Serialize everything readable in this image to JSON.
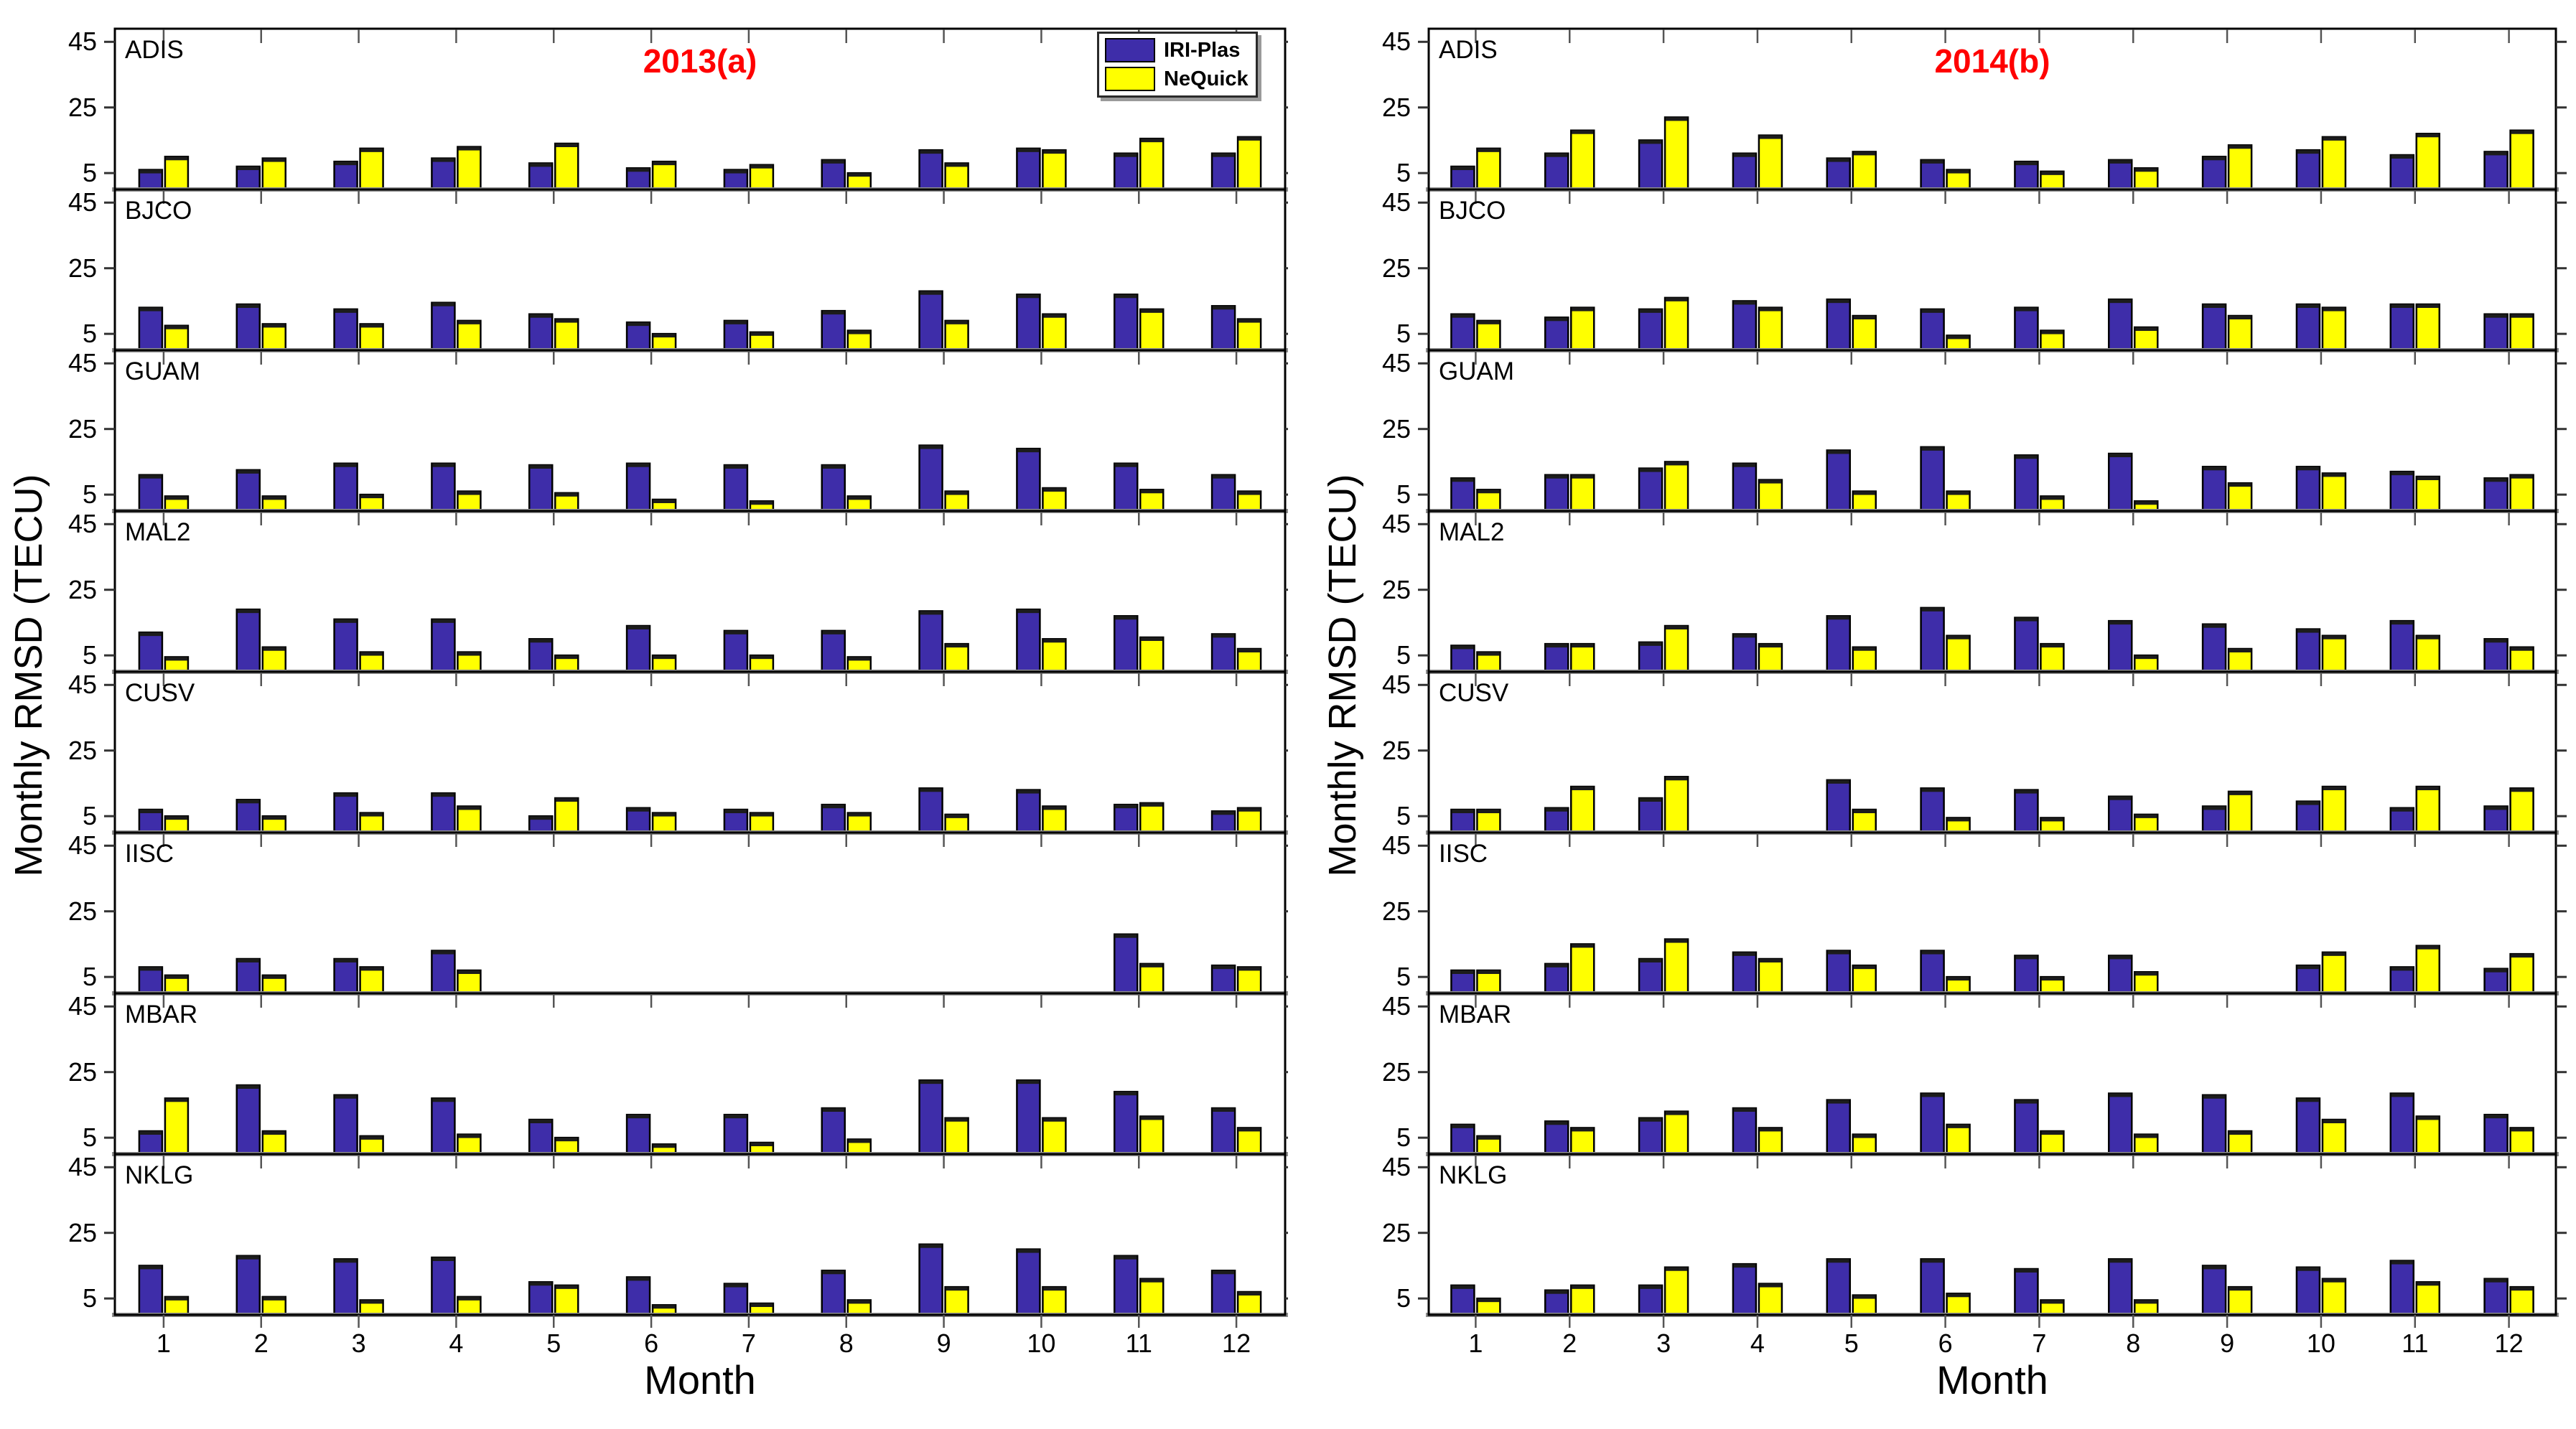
{
  "figure": {
    "xlabel": "Month",
    "ylabel": "Monthly RMSD (TECU)"
  },
  "legend": {
    "items": [
      {
        "label": "IRI-Plas",
        "color": "#3E2DA9"
      },
      {
        "label": "NeQuick",
        "color": "#FFFF00"
      }
    ]
  },
  "colors": {
    "iri_plas": "#3E2DA9",
    "nequick": "#FFFF00",
    "title_red": "#FF0000",
    "baseline_gray": "#8F8F8F",
    "frame_black": "#000000"
  },
  "chart_data": [
    {
      "type": "bar",
      "title": "2013(a)",
      "title_color": "#FF0000",
      "xlabel": "Month",
      "ylabel": "Monthly RMSD (TECU)",
      "x_categories": [
        "1",
        "2",
        "3",
        "4",
        "5",
        "6",
        "7",
        "8",
        "9",
        "10",
        "11",
        "12"
      ],
      "ylim": [
        0,
        49
      ],
      "yticks": [
        5,
        25,
        45
      ],
      "grid": false,
      "legend_position": "top-right-of-first-panel",
      "note": "value 0 means no bar plotted (missing data)",
      "panels": [
        {
          "station": "ADIS",
          "series": [
            {
              "name": "IRI-Plas",
              "values": [
                6,
                7,
                8.5,
                9.5,
                8,
                6.5,
                6,
                9,
                12,
                12.5,
                11,
                11
              ]
            },
            {
              "name": "NeQuick",
              "values": [
                10,
                9.5,
                12.5,
                13,
                14,
                8.5,
                7.5,
                5,
                8,
                12,
                15.5,
                16
              ]
            }
          ]
        },
        {
          "station": "BJCO",
          "series": [
            {
              "name": "IRI-Plas",
              "values": [
                13,
                14,
                12.5,
                14.5,
                11,
                8.5,
                9,
                12,
                18,
                17,
                17,
                13.5
              ]
            },
            {
              "name": "NeQuick",
              "values": [
                7.5,
                8,
                8,
                9,
                9.5,
                5,
                5.5,
                6,
                9,
                11,
                12.5,
                9.5
              ]
            }
          ]
        },
        {
          "station": "GUAM",
          "series": [
            {
              "name": "IRI-Plas",
              "values": [
                11,
                12.5,
                14.5,
                14.5,
                14,
                14.5,
                14,
                14,
                20,
                19,
                14.5,
                11
              ]
            },
            {
              "name": "NeQuick",
              "values": [
                4.5,
                4.5,
                5,
                6,
                5.5,
                3.5,
                3,
                4.5,
                6,
                7,
                6.5,
                6
              ]
            }
          ]
        },
        {
          "station": "MAL2",
          "series": [
            {
              "name": "IRI-Plas",
              "values": [
                12,
                19,
                16,
                16,
                10,
                14,
                12.5,
                12.5,
                18.5,
                19,
                17,
                11.5
              ]
            },
            {
              "name": "NeQuick",
              "values": [
                4.5,
                7.5,
                6,
                6,
                5,
                5,
                5,
                4.5,
                8.5,
                10,
                10.5,
                7
              ]
            }
          ]
        },
        {
          "station": "CUSV",
          "series": [
            {
              "name": "IRI-Plas",
              "values": [
                7,
                10,
                12,
                12,
                5,
                7.5,
                7,
                8.5,
                13.5,
                13,
                8.5,
                6.5
              ]
            },
            {
              "name": "NeQuick",
              "values": [
                5,
                5,
                6,
                8,
                10.5,
                6,
                6,
                6,
                5.5,
                8,
                9,
                7.5
              ]
            }
          ]
        },
        {
          "station": "IISC",
          "series": [
            {
              "name": "IRI-Plas",
              "values": [
                8,
                10.5,
                10.5,
                13,
                0,
                0,
                0,
                0,
                0,
                0,
                18,
                8.5
              ]
            },
            {
              "name": "NeQuick",
              "values": [
                5.5,
                5.5,
                8,
                7,
                0,
                0,
                0,
                0,
                0,
                0,
                9,
                8
              ]
            }
          ]
        },
        {
          "station": "MBAR",
          "series": [
            {
              "name": "IRI-Plas",
              "values": [
                7,
                21,
                18,
                17,
                10.5,
                12,
                12,
                14,
                22.5,
                22.5,
                19,
                14
              ]
            },
            {
              "name": "NeQuick",
              "values": [
                17,
                7,
                5.5,
                6,
                5,
                3,
                3.5,
                4.5,
                11,
                11,
                11.5,
                8
              ]
            }
          ]
        },
        {
          "station": "NKLG",
          "series": [
            {
              "name": "IRI-Plas",
              "values": [
                15,
                18,
                17,
                17.5,
                10,
                11.5,
                9.5,
                13.5,
                21.5,
                20,
                18,
                13.5
              ]
            },
            {
              "name": "NeQuick",
              "values": [
                5.5,
                5.5,
                4.5,
                5.5,
                9,
                3,
                3.5,
                4.5,
                8.5,
                8.5,
                11,
                7
              ]
            }
          ]
        }
      ]
    },
    {
      "type": "bar",
      "title": "2014(b)",
      "title_color": "#FF0000",
      "xlabel": "Month",
      "ylabel": "Monthly RMSD (TECU)",
      "x_categories": [
        "1",
        "2",
        "3",
        "4",
        "5",
        "6",
        "7",
        "8",
        "9",
        "10",
        "11",
        "12"
      ],
      "ylim": [
        0,
        49
      ],
      "yticks": [
        5,
        25,
        45
      ],
      "grid": false,
      "legend_position": "none",
      "note": "value 0 means no bar plotted (missing data)",
      "panels": [
        {
          "station": "ADIS",
          "series": [
            {
              "name": "IRI-Plas",
              "values": [
                7,
                11,
                15,
                11,
                9.5,
                9,
                8.5,
                9,
                10,
                12,
                10.5,
                11.5
              ]
            },
            {
              "name": "NeQuick",
              "values": [
                12.5,
                18,
                22,
                16.5,
                11.5,
                6,
                5.5,
                6.5,
                13.5,
                16,
                17,
                18
              ]
            }
          ]
        },
        {
          "station": "BJCO",
          "series": [
            {
              "name": "IRI-Plas",
              "values": [
                11,
                10,
                12.5,
                15,
                15.5,
                12.5,
                13,
                15.5,
                14,
                14,
                14,
                11
              ]
            },
            {
              "name": "NeQuick",
              "values": [
                9,
                13,
                16,
                13,
                10.5,
                4.5,
                6,
                7,
                10.5,
                13,
                14,
                11
              ]
            }
          ]
        },
        {
          "station": "GUAM",
          "series": [
            {
              "name": "IRI-Plas",
              "values": [
                10,
                11,
                13,
                14.5,
                18.5,
                19.5,
                17,
                17.5,
                13.5,
                13.5,
                12,
                10
              ]
            },
            {
              "name": "NeQuick",
              "values": [
                6.5,
                11,
                15,
                9.5,
                6,
                6,
                4.5,
                3,
                8.5,
                11.5,
                10.5,
                11
              ]
            }
          ]
        },
        {
          "station": "MAL2",
          "series": [
            {
              "name": "IRI-Plas",
              "values": [
                8,
                8.5,
                9,
                11.5,
                17,
                19.5,
                16.5,
                15.5,
                14.5,
                13,
                15.5,
                10
              ]
            },
            {
              "name": "NeQuick",
              "values": [
                6,
                8.5,
                14,
                8.5,
                7.5,
                11,
                8.5,
                5,
                7,
                11,
                11,
                7.5
              ]
            }
          ]
        },
        {
          "station": "CUSV",
          "series": [
            {
              "name": "IRI-Plas",
              "values": [
                7,
                7.5,
                10.5,
                0,
                16,
                13.5,
                13,
                11,
                8,
                9.5,
                7.5,
                8
              ]
            },
            {
              "name": "NeQuick",
              "values": [
                7,
                14,
                17,
                0,
                7,
                4.5,
                4.5,
                5.5,
                12.5,
                14,
                14,
                13.5
              ]
            }
          ]
        },
        {
          "station": "IISC",
          "series": [
            {
              "name": "IRI-Plas",
              "values": [
                7,
                9,
                10.5,
                12.5,
                13,
                13,
                11.5,
                11.5,
                0,
                8.5,
                8,
                7.5
              ]
            },
            {
              "name": "NeQuick",
              "values": [
                7,
                15,
                16.5,
                10.5,
                8.5,
                5,
                5,
                6.5,
                0,
                12.5,
                14.5,
                12
              ]
            }
          ]
        },
        {
          "station": "MBAR",
          "series": [
            {
              "name": "IRI-Plas",
              "values": [
                9,
                10,
                11,
                14,
                16.5,
                18.5,
                16.5,
                18.5,
                18,
                17,
                18.5,
                12
              ]
            },
            {
              "name": "NeQuick",
              "values": [
                5.5,
                8,
                13,
                8,
                6,
                9,
                7,
                6,
                7,
                10.5,
                11.5,
                8
              ]
            }
          ]
        },
        {
          "station": "NKLG",
          "series": [
            {
              "name": "IRI-Plas",
              "values": [
                9,
                7.5,
                9,
                15.5,
                17,
                17,
                14,
                17,
                15,
                14.5,
                16.5,
                11
              ]
            },
            {
              "name": "NeQuick",
              "values": [
                5,
                9,
                14.5,
                9.5,
                6,
                6.5,
                4.5,
                4.5,
                8.5,
                11,
                10,
                8.5
              ]
            }
          ]
        }
      ]
    }
  ]
}
